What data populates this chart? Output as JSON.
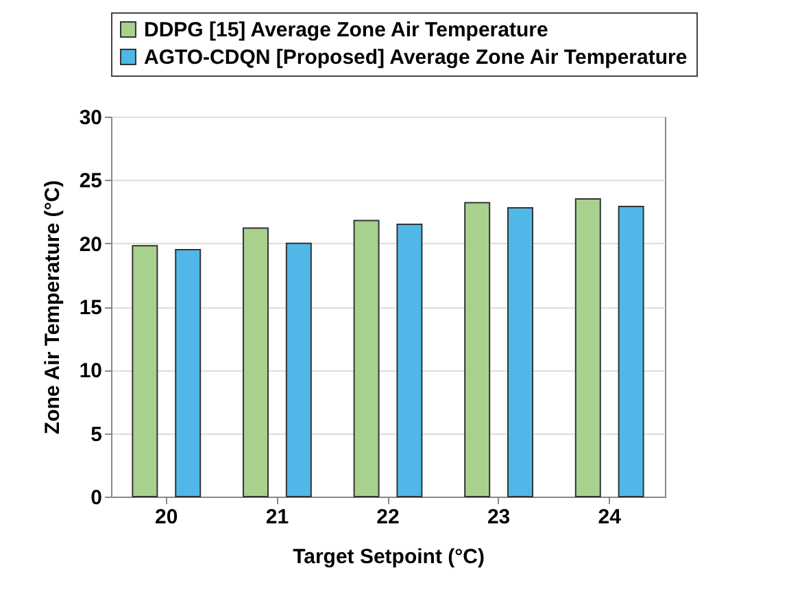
{
  "chart_data": {
    "type": "bar",
    "xlabel": "Target Setpoint (°C)",
    "ylabel": "Zone Air Temperature (°C)",
    "categories": [
      "20",
      "21",
      "22",
      "23",
      "24"
    ],
    "series": [
      {
        "name": "DDPG [15] Average Zone Air Temperature",
        "color": "#a9d18e",
        "values": [
          19.8,
          21.2,
          21.8,
          23.2,
          23.5
        ]
      },
      {
        "name": "AGTO-CDQN [Proposed] Average Zone Air Temperature",
        "color": "#4fb8e8",
        "values": [
          19.5,
          20.0,
          21.5,
          22.8,
          22.9
        ]
      }
    ],
    "ylim": [
      0,
      30
    ],
    "yticks": [
      0,
      5,
      10,
      15,
      20,
      25,
      30
    ],
    "grid": "y",
    "legend": "top"
  }
}
